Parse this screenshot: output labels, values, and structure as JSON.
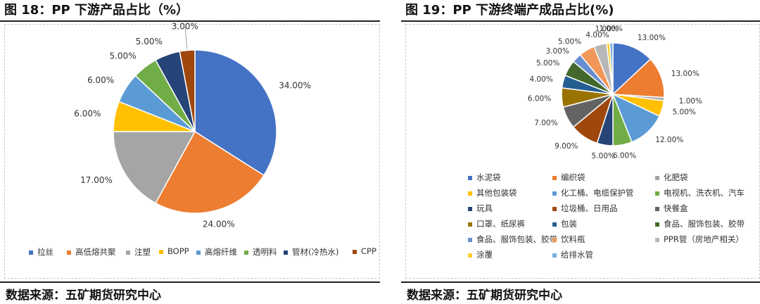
{
  "left": {
    "title": "图 18：PP 下游产品占比（%）",
    "source": "数据来源：五矿期货研究中心"
  },
  "right": {
    "title": "图 19：PP 下游终端产成品占比(%)",
    "source": "数据来源：五矿期货研究中心"
  },
  "chart_data": [
    {
      "type": "pie",
      "title": "",
      "start_angle_deg": 0,
      "direction": "clockwise",
      "legend_position": "bottom",
      "categories": [
        "拉丝",
        "高低熔共聚",
        "注塑",
        "BOPP",
        "高熔纤维",
        "透明料",
        "管材(冷热水)",
        "CPP"
      ],
      "values": [
        34,
        24,
        17,
        6,
        6,
        5,
        5,
        3
      ],
      "labels": [
        "34.00%",
        "24.00%",
        "17.00%",
        "6.00%",
        "6.00%",
        "5.00%",
        "5.00%",
        "3.00%"
      ],
      "colors": [
        "#4472C4",
        "#ED7D31",
        "#A5A5A5",
        "#FFC000",
        "#5B9BD5",
        "#70AD47",
        "#264478",
        "#9E480E"
      ]
    },
    {
      "type": "pie",
      "title": "",
      "start_angle_deg": 0,
      "direction": "clockwise",
      "legend_position": "bottom",
      "categories": [
        "水泥袋",
        "编织袋",
        "化肥袋",
        "其他包装袋",
        "化工桶、电缆保护管",
        "电视机、洗衣机、汽车",
        "玩具",
        "垃圾桶、日用品",
        "快餐盒",
        "口罩、纸尿裤",
        "包装",
        "食品、服饰包装、胶带",
        "食品、服饰包装、胶带",
        "饮料瓶",
        "PPR管（房地产相关）",
        "涂覆",
        "给排水管"
      ],
      "values": [
        13,
        13,
        1,
        5,
        12,
        6,
        5,
        9,
        7,
        6,
        4,
        5,
        3,
        5,
        4,
        1,
        1
      ],
      "labels": [
        "13.00%",
        "13.00%",
        "1.00%",
        "5.00%",
        "12.00%",
        "6.00%",
        "5.00%",
        "9.00%",
        "7.00%",
        "6.00%",
        "4.00%",
        "5.00%",
        "3.00%",
        "5.00%",
        "4.00%",
        "1.00%",
        "1.00%"
      ],
      "colors": [
        "#4472C4",
        "#ED7D31",
        "#A5A5A5",
        "#FFC000",
        "#5B9BD5",
        "#70AD47",
        "#264478",
        "#9E480E",
        "#636363",
        "#997300",
        "#255E91",
        "#43682B",
        "#698ED0",
        "#F1975A",
        "#B7B7B7",
        "#FFCD33",
        "#7CAFDD"
      ]
    }
  ]
}
